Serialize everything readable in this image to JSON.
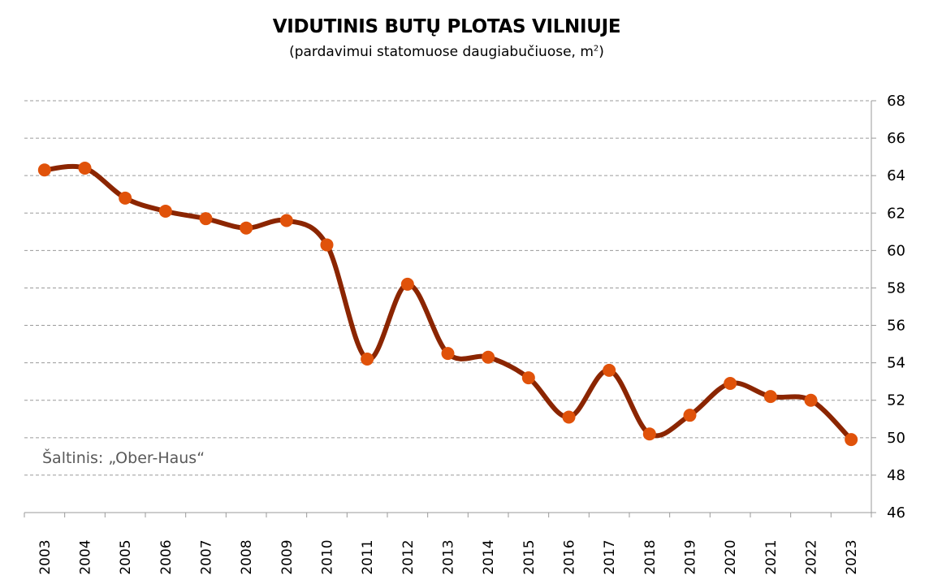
{
  "chart_data": {
    "type": "line",
    "title": "VIDUTINIS BUTŲ PLOTAS VILNIUJE",
    "subtitle": "(pardavimui statomuose daugiabučiuose, m",
    "subtitle_sup": "2",
    "subtitle_end": ")",
    "source": "Šaltinis: „Ober-Haus“",
    "x": [
      "2003",
      "2004",
      "2005",
      "2006",
      "2007",
      "2008",
      "2009",
      "2010",
      "2011",
      "2012",
      "2013",
      "2014",
      "2015",
      "2016",
      "2017",
      "2018",
      "2019",
      "2020",
      "2021",
      "2022",
      "2023"
    ],
    "series": [
      {
        "values": [
          64.3,
          64.4,
          62.8,
          62.1,
          61.7,
          61.2,
          61.6,
          60.3,
          54.2,
          58.2,
          54.5,
          54.3,
          53.2,
          51.1,
          53.6,
          50.2,
          51.2,
          52.9,
          52.2,
          52.0,
          49.9
        ],
        "line_color": "#8B2500",
        "marker_color": "#E0520A"
      }
    ],
    "yticks": [
      "46",
      "48",
      "50",
      "52",
      "54",
      "56",
      "58",
      "60",
      "62",
      "64",
      "66",
      "68"
    ],
    "ylim": [
      46,
      68
    ],
    "y_axis_position": "right",
    "grid": true,
    "smooth": true,
    "legend": "none"
  }
}
